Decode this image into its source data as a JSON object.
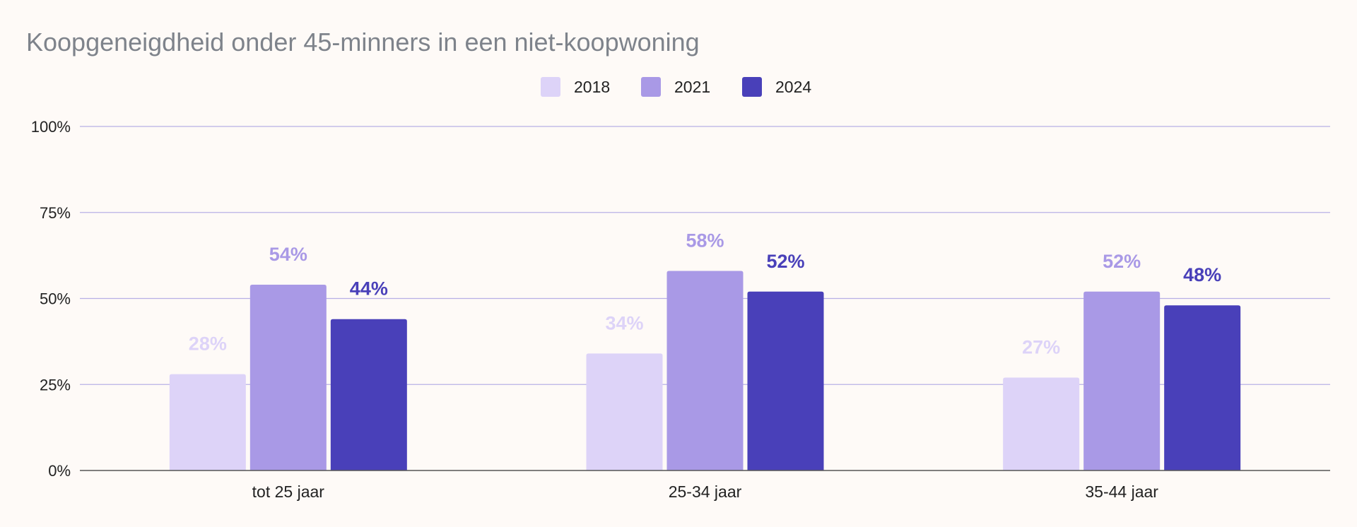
{
  "chart_data": {
    "type": "bar",
    "title": "Koopgeneigdheid onder 45-minners in een niet-koopwoning",
    "xlabel": "",
    "ylabel": "",
    "categories": [
      "tot 25 jaar",
      "25-34 jaar",
      "35-44 jaar"
    ],
    "series": [
      {
        "name": "2018",
        "values": [
          28,
          34,
          27
        ],
        "labels": [
          "28%",
          "34%",
          "27%"
        ],
        "color": "#DDD3F8"
      },
      {
        "name": "2021",
        "values": [
          54,
          58,
          52
        ],
        "labels": [
          "54%",
          "58%",
          "52%"
        ],
        "color": "#A999E6"
      },
      {
        "name": "2024",
        "values": [
          44,
          52,
          48
        ],
        "labels": [
          "44%",
          "52%",
          "48%"
        ],
        "color": "#4940B9"
      }
    ],
    "ylim": [
      0,
      100
    ],
    "yticks": [
      0,
      25,
      50,
      75,
      100
    ],
    "ytick_labels": [
      "0%",
      "25%",
      "50%",
      "75%",
      "100%"
    ],
    "grid": true,
    "legend": "top-center",
    "colors": {
      "grid": "#B8B0E6",
      "axis": "#555555",
      "title": "#7E838B",
      "text": "#222222",
      "background": "#FEFAF7"
    }
  }
}
